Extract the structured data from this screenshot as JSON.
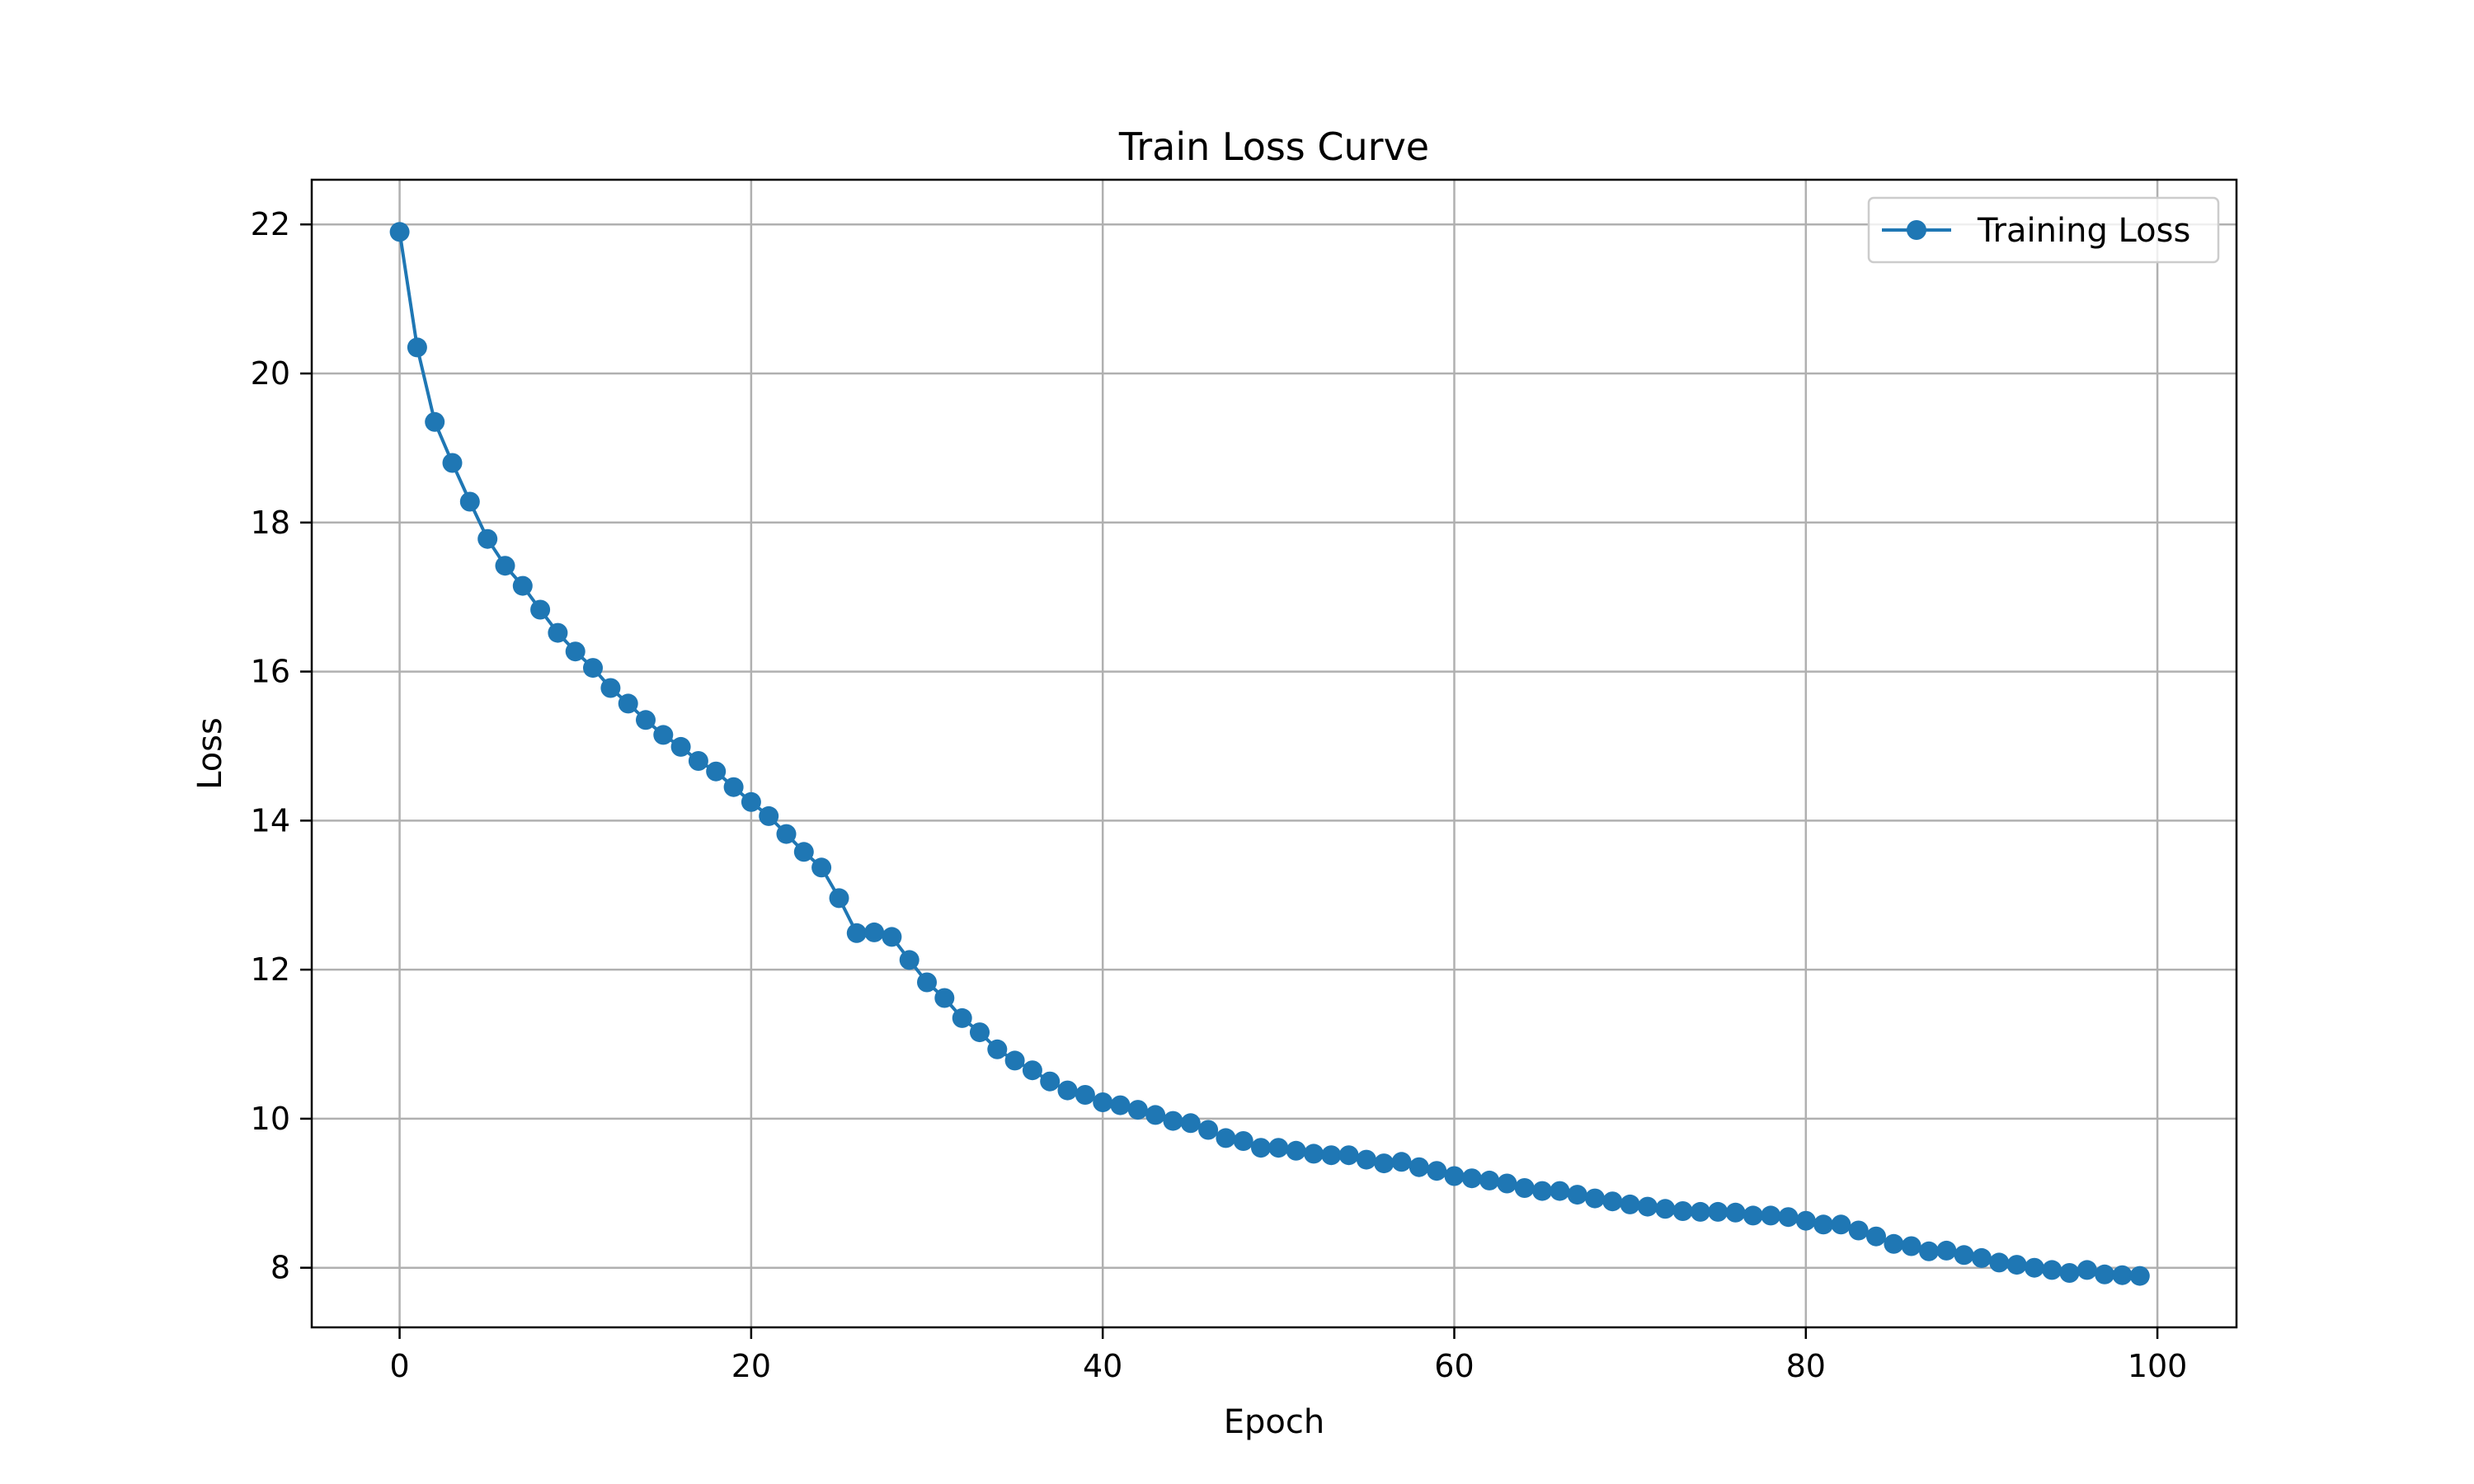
{
  "chart_data": {
    "type": "line",
    "title": "Train Loss Curve",
    "xlabel": "Epoch",
    "ylabel": "Loss",
    "xlim": [
      -5,
      104.5
    ],
    "ylim": [
      7.2,
      22.6
    ],
    "xticks": [
      0,
      20,
      40,
      60,
      80,
      100
    ],
    "yticks": [
      8,
      10,
      12,
      14,
      16,
      18,
      20,
      22
    ],
    "grid": true,
    "legend_position": "top-right",
    "color": "#1f77b4",
    "marker": "circle",
    "series": [
      {
        "name": "Training Loss",
        "x": [
          0,
          1,
          2,
          3,
          4,
          5,
          6,
          7,
          8,
          9,
          10,
          11,
          12,
          13,
          14,
          15,
          16,
          17,
          18,
          19,
          20,
          21,
          22,
          23,
          24,
          25,
          26,
          27,
          28,
          29,
          30,
          31,
          32,
          33,
          34,
          35,
          36,
          37,
          38,
          39,
          40,
          41,
          42,
          43,
          44,
          45,
          46,
          47,
          48,
          49,
          50,
          51,
          52,
          53,
          54,
          55,
          56,
          57,
          58,
          59,
          60,
          61,
          62,
          63,
          64,
          65,
          66,
          67,
          68,
          69,
          70,
          71,
          72,
          73,
          74,
          75,
          76,
          77,
          78,
          79,
          80,
          81,
          82,
          83,
          84,
          85,
          86,
          87,
          88,
          89,
          90,
          91,
          92,
          93,
          94,
          95,
          96,
          97,
          98,
          99
        ],
        "values": [
          21.9,
          20.35,
          19.35,
          18.8,
          18.28,
          17.78,
          17.42,
          17.15,
          16.83,
          16.52,
          16.27,
          16.05,
          15.78,
          15.57,
          15.35,
          15.15,
          14.99,
          14.8,
          14.66,
          14.45,
          14.25,
          14.06,
          13.82,
          13.58,
          13.37,
          12.96,
          12.49,
          12.5,
          12.44,
          12.13,
          11.83,
          11.62,
          11.35,
          11.16,
          10.93,
          10.78,
          10.65,
          10.5,
          10.38,
          10.32,
          10.22,
          10.18,
          10.12,
          10.05,
          9.97,
          9.94,
          9.85,
          9.74,
          9.7,
          9.61,
          9.61,
          9.57,
          9.53,
          9.51,
          9.51,
          9.45,
          9.4,
          9.42,
          9.35,
          9.3,
          9.23,
          9.2,
          9.17,
          9.13,
          9.07,
          9.03,
          9.03,
          8.98,
          8.93,
          8.89,
          8.85,
          8.82,
          8.79,
          8.76,
          8.75,
          8.75,
          8.74,
          8.7,
          8.7,
          8.68,
          8.63,
          8.58,
          8.58,
          8.5,
          8.42,
          8.32,
          8.29,
          8.22,
          8.23,
          8.17,
          8.13,
          8.07,
          8.04,
          8.0,
          7.97,
          7.93,
          7.97,
          7.91,
          7.9,
          7.89
        ]
      }
    ]
  }
}
